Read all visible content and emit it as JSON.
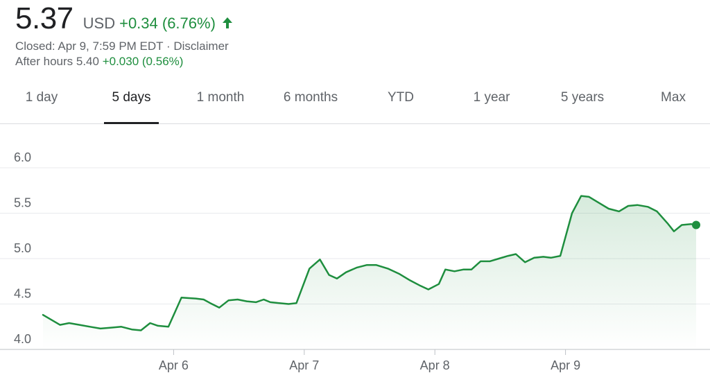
{
  "quote": {
    "price": "5.37",
    "currency": "USD",
    "change": "+0.34 (6.76%)",
    "arrow_icon": "arrow-up-icon",
    "closed_text": "Closed: Apr 9, 7:59 PM EDT",
    "separator": " · ",
    "disclaimer": "Disclaimer",
    "after_hours_label": "After hours 5.40",
    "after_hours_change": "+0.030 (0.56%)"
  },
  "tabs": [
    {
      "label": "1 day",
      "active": false
    },
    {
      "label": "5 days",
      "active": true
    },
    {
      "label": "1 month",
      "active": false
    },
    {
      "label": "6 months",
      "active": false
    },
    {
      "label": "YTD",
      "active": false
    },
    {
      "label": "1 year",
      "active": false
    },
    {
      "label": "5 years",
      "active": false
    },
    {
      "label": "Max",
      "active": false
    }
  ],
  "colors": {
    "line": "#1e8e3e",
    "fill_top": "#1e8e3e",
    "grid": "#e8eaed",
    "axis": "#dadce0",
    "text_muted": "#5f6368"
  },
  "chart_data": {
    "type": "area",
    "title": "",
    "xlabel": "",
    "ylabel": "",
    "x_tick_labels": [
      "Apr 6",
      "Apr 7",
      "Apr 8",
      "Apr 9"
    ],
    "x_tick_positions": [
      1,
      2,
      3,
      4
    ],
    "y_ticks": [
      4.0,
      4.5,
      5.0,
      5.5,
      6.0
    ],
    "y_tick_labels": [
      "4.0",
      "4.5",
      "5.0",
      "5.5",
      "6.0"
    ],
    "ylim": [
      4.0,
      6.0
    ],
    "xlim": [
      0,
      5
    ],
    "grid": true,
    "series": [
      {
        "values": [
          [
            0.0,
            4.38
          ],
          [
            0.06,
            4.33
          ],
          [
            0.13,
            4.27
          ],
          [
            0.2,
            4.29
          ],
          [
            0.28,
            4.27
          ],
          [
            0.36,
            4.25
          ],
          [
            0.44,
            4.23
          ],
          [
            0.52,
            4.24
          ],
          [
            0.6,
            4.25
          ],
          [
            0.68,
            4.22
          ],
          [
            0.75,
            4.21
          ],
          [
            0.82,
            4.29
          ],
          [
            0.88,
            4.26
          ],
          [
            0.96,
            4.25
          ],
          [
            1.06,
            4.57
          ],
          [
            1.17,
            4.56
          ],
          [
            1.23,
            4.55
          ],
          [
            1.28,
            4.51
          ],
          [
            1.35,
            4.46
          ],
          [
            1.42,
            4.54
          ],
          [
            1.49,
            4.55
          ],
          [
            1.56,
            4.53
          ],
          [
            1.63,
            4.52
          ],
          [
            1.69,
            4.55
          ],
          [
            1.74,
            4.52
          ],
          [
            1.81,
            4.51
          ],
          [
            1.88,
            4.5
          ],
          [
            1.94,
            4.51
          ],
          [
            2.04,
            4.89
          ],
          [
            2.12,
            4.99
          ],
          [
            2.19,
            4.82
          ],
          [
            2.25,
            4.78
          ],
          [
            2.32,
            4.85
          ],
          [
            2.4,
            4.9
          ],
          [
            2.48,
            4.93
          ],
          [
            2.55,
            4.93
          ],
          [
            2.64,
            4.89
          ],
          [
            2.73,
            4.83
          ],
          [
            2.81,
            4.76
          ],
          [
            2.89,
            4.7
          ],
          [
            2.95,
            4.66
          ],
          [
            3.03,
            4.72
          ],
          [
            3.08,
            4.88
          ],
          [
            3.15,
            4.86
          ],
          [
            3.22,
            4.88
          ],
          [
            3.28,
            4.88
          ],
          [
            3.35,
            4.97
          ],
          [
            3.42,
            4.97
          ],
          [
            3.49,
            5.0
          ],
          [
            3.56,
            5.03
          ],
          [
            3.62,
            5.05
          ],
          [
            3.69,
            4.96
          ],
          [
            3.76,
            5.01
          ],
          [
            3.83,
            5.02
          ],
          [
            3.89,
            5.01
          ],
          [
            3.96,
            5.03
          ],
          [
            4.05,
            5.5
          ],
          [
            4.12,
            5.69
          ],
          [
            4.18,
            5.68
          ],
          [
            4.26,
            5.61
          ],
          [
            4.33,
            5.55
          ],
          [
            4.41,
            5.52
          ],
          [
            4.48,
            5.58
          ],
          [
            4.55,
            5.59
          ],
          [
            4.63,
            5.57
          ],
          [
            4.7,
            5.52
          ],
          [
            4.78,
            5.39
          ],
          [
            4.83,
            5.3
          ],
          [
            4.89,
            5.37
          ],
          [
            4.96,
            5.38
          ],
          [
            5.0,
            5.37
          ]
        ]
      }
    ],
    "last_point_marker": true
  }
}
